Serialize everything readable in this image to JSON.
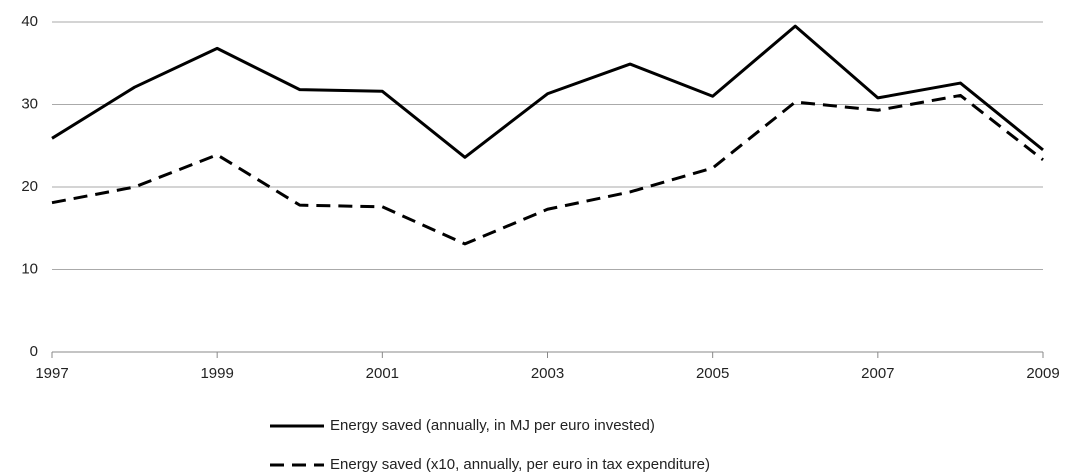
{
  "chart_data": {
    "type": "line",
    "x": [
      1997,
      1998,
      1999,
      2000,
      2001,
      2002,
      2003,
      2004,
      2005,
      2006,
      2007,
      2008,
      2009
    ],
    "series": [
      {
        "name": "Energy saved (annually, in MJ per euro invested)",
        "color": "#000000",
        "line_style": "solid",
        "values": [
          25.9,
          32.1,
          36.8,
          31.8,
          31.6,
          23.6,
          31.3,
          34.9,
          31.0,
          39.5,
          30.8,
          32.6,
          24.5
        ]
      },
      {
        "name": "Energy saved (x10, annually, per euro in tax expenditure)",
        "color": "#000000",
        "line_style": "dashed",
        "values": [
          18.1,
          20.0,
          23.9,
          17.8,
          17.6,
          13.1,
          17.3,
          19.4,
          22.3,
          30.3,
          29.3,
          31.1,
          23.3
        ]
      }
    ],
    "xlim": [
      1997,
      2009
    ],
    "xticks": [
      1997,
      1999,
      2001,
      2003,
      2005,
      2007,
      2009
    ],
    "ylim": [
      0,
      40
    ],
    "yticks": [
      0,
      10,
      20,
      30,
      40
    ],
    "grid": true,
    "legend": "bottom"
  }
}
